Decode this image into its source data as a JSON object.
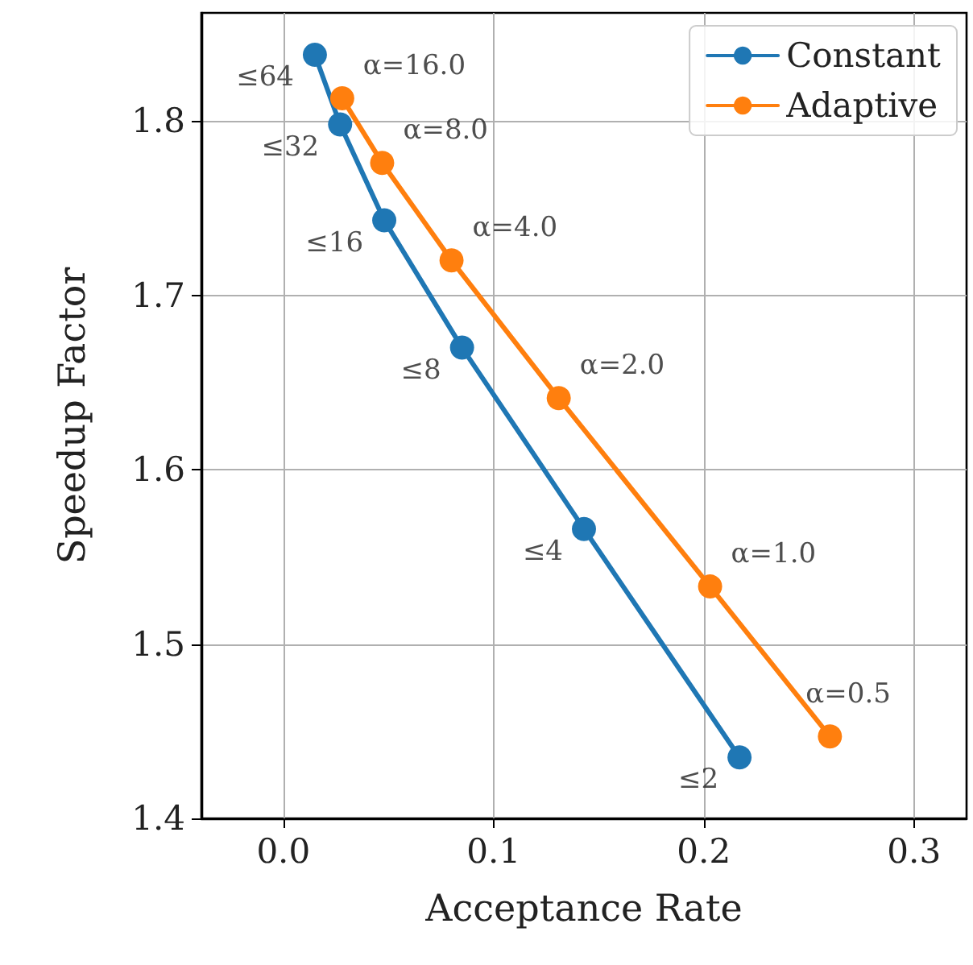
{
  "chart_data": {
    "type": "line",
    "xlabel": "Acceptance Rate",
    "ylabel": "Speedup Factor",
    "xlim": [
      -0.039,
      0.325
    ],
    "ylim": [
      1.4,
      1.862
    ],
    "xticks": [
      {
        "value": 0,
        "label": "0.0"
      },
      {
        "value": 0.1,
        "label": "0.1"
      },
      {
        "value": 0.2,
        "label": "0.2"
      },
      {
        "value": 0.3,
        "label": "0.3"
      }
    ],
    "yticks": [
      1.4,
      1.5,
      1.6,
      1.7,
      1.8
    ],
    "grid": true,
    "legend": "top right",
    "marker": "circle",
    "line_style": "solid",
    "series": [
      {
        "name": "Constant",
        "color": "#1f77b4",
        "x": [
          0.015,
          0.027,
          0.048,
          0.085,
          0.143,
          0.217
        ],
        "values": [
          1.838,
          1.798,
          1.743,
          1.67,
          1.566,
          1.435
        ]
      },
      {
        "name": "Adaptive",
        "color": "#ff7f0e",
        "x": [
          0.028,
          0.047,
          0.08,
          0.131,
          0.203,
          0.26
        ],
        "values": [
          1.813,
          1.776,
          1.72,
          1.641,
          1.533,
          1.447
        ]
      }
    ],
    "annotations": [
      {
        "text": "≤64",
        "x": 0.015,
        "y": 1.838
      },
      {
        "text": "≤32",
        "x": 0.027,
        "y": 1.798
      },
      {
        "text": "≤16",
        "x": 0.048,
        "y": 1.743
      },
      {
        "text": "≤8",
        "x": 0.085,
        "y": 1.67
      },
      {
        "text": "≤4",
        "x": 0.143,
        "y": 1.566
      },
      {
        "text": "≤2",
        "x": 0.217,
        "y": 1.435
      },
      {
        "text": "α=16.0",
        "x": 0.028,
        "y": 1.813
      },
      {
        "text": "α=8.0",
        "x": 0.047,
        "y": 1.776
      },
      {
        "text": "α=4.0",
        "x": 0.08,
        "y": 1.72
      },
      {
        "text": "α=2.0",
        "x": 0.131,
        "y": 1.641
      },
      {
        "text": "α=1.0",
        "x": 0.203,
        "y": 1.533
      },
      {
        "text": "α=0.5",
        "x": 0.26,
        "y": 1.447
      }
    ]
  }
}
